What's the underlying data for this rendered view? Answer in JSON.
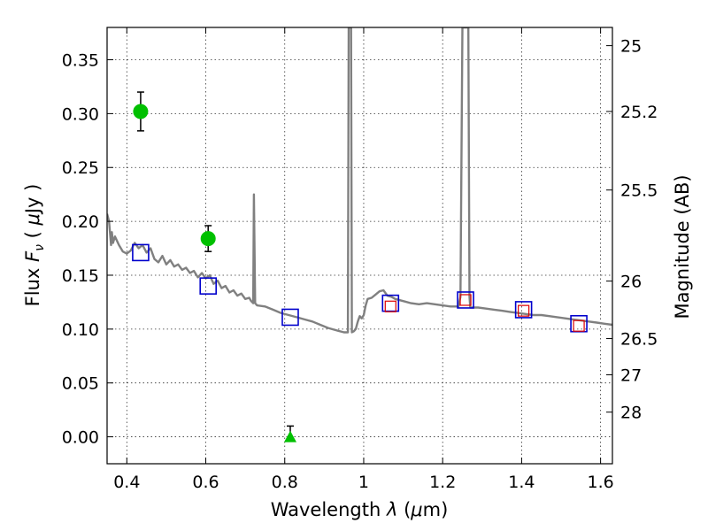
{
  "chart_data": {
    "type": "scatter",
    "xlabel": "Wavelength  λ (μm)",
    "ylabel": "Flux  F_ν  ( μJy )",
    "y2label": "Magnitude (AB)",
    "xlim": [
      0.35,
      1.63
    ],
    "ylim": [
      -0.025,
      0.38
    ],
    "grid": true,
    "xticks": [
      0.4,
      0.6,
      0.8,
      1.0,
      1.2,
      1.4,
      1.6
    ],
    "xtick_labels": [
      "0.4",
      "0.6",
      "0.8",
      "1",
      "1.2",
      "1.4",
      "1.6"
    ],
    "yticks": [
      0.0,
      0.05,
      0.1,
      0.15,
      0.2,
      0.25,
      0.3,
      0.35
    ],
    "ytick_labels": [
      "0.00",
      "0.05",
      "0.10",
      "0.15",
      "0.20",
      "0.25",
      "0.30",
      "0.35"
    ],
    "y2ticks": [
      25,
      25.2,
      25.5,
      26,
      26.5,
      27,
      28
    ],
    "y2tick_labels": [
      "25",
      "25.2",
      "25.5",
      "26",
      "26.5",
      "27",
      "28"
    ],
    "series": [
      {
        "name": "model_spectrum",
        "kind": "line",
        "color": "#808080",
        "points": [
          [
            0.35,
            0.207
          ],
          [
            0.355,
            0.2
          ],
          [
            0.36,
            0.178
          ],
          [
            0.362,
            0.19
          ],
          [
            0.365,
            0.18
          ],
          [
            0.37,
            0.186
          ],
          [
            0.38,
            0.178
          ],
          [
            0.39,
            0.172
          ],
          [
            0.4,
            0.17
          ],
          [
            0.41,
            0.173
          ],
          [
            0.42,
            0.18
          ],
          [
            0.43,
            0.175
          ],
          [
            0.44,
            0.178
          ],
          [
            0.45,
            0.171
          ],
          [
            0.46,
            0.175
          ],
          [
            0.47,
            0.165
          ],
          [
            0.48,
            0.162
          ],
          [
            0.49,
            0.168
          ],
          [
            0.5,
            0.16
          ],
          [
            0.51,
            0.164
          ],
          [
            0.52,
            0.158
          ],
          [
            0.53,
            0.16
          ],
          [
            0.54,
            0.155
          ],
          [
            0.55,
            0.157
          ],
          [
            0.56,
            0.152
          ],
          [
            0.57,
            0.154
          ],
          [
            0.58,
            0.148
          ],
          [
            0.59,
            0.152
          ],
          [
            0.6,
            0.147
          ],
          [
            0.61,
            0.15
          ],
          [
            0.62,
            0.142
          ],
          [
            0.63,
            0.145
          ],
          [
            0.64,
            0.138
          ],
          [
            0.65,
            0.14
          ],
          [
            0.66,
            0.134
          ],
          [
            0.67,
            0.136
          ],
          [
            0.68,
            0.131
          ],
          [
            0.69,
            0.133
          ],
          [
            0.7,
            0.128
          ],
          [
            0.71,
            0.129
          ],
          [
            0.715,
            0.126
          ],
          [
            0.72,
            0.124
          ],
          [
            0.722,
            0.225
          ],
          [
            0.725,
            0.124
          ],
          [
            0.73,
            0.122
          ],
          [
            0.75,
            0.121
          ],
          [
            0.77,
            0.118
          ],
          [
            0.79,
            0.115
          ],
          [
            0.81,
            0.113
          ],
          [
            0.83,
            0.111
          ],
          [
            0.85,
            0.109
          ],
          [
            0.87,
            0.107
          ],
          [
            0.89,
            0.104
          ],
          [
            0.91,
            0.101
          ],
          [
            0.93,
            0.099
          ],
          [
            0.95,
            0.097
          ],
          [
            0.96,
            0.097
          ],
          [
            0.962,
            0.38
          ],
          [
            0.968,
            0.38
          ],
          [
            0.97,
            0.097
          ],
          [
            0.975,
            0.098
          ],
          [
            0.98,
            0.1
          ],
          [
            0.985,
            0.107
          ],
          [
            0.99,
            0.112
          ],
          [
            0.995,
            0.11
          ],
          [
            1.0,
            0.113
          ],
          [
            1.005,
            0.122
          ],
          [
            1.01,
            0.128
          ],
          [
            1.02,
            0.129
          ],
          [
            1.03,
            0.132
          ],
          [
            1.04,
            0.135
          ],
          [
            1.05,
            0.136
          ],
          [
            1.06,
            0.131
          ],
          [
            1.07,
            0.13
          ],
          [
            1.08,
            0.128
          ],
          [
            1.1,
            0.126
          ],
          [
            1.12,
            0.124
          ],
          [
            1.14,
            0.123
          ],
          [
            1.16,
            0.124
          ],
          [
            1.18,
            0.123
          ],
          [
            1.2,
            0.122
          ],
          [
            1.22,
            0.121
          ],
          [
            1.24,
            0.121
          ],
          [
            1.245,
            0.13
          ],
          [
            1.25,
            0.38
          ],
          [
            1.265,
            0.38
          ],
          [
            1.268,
            0.13
          ],
          [
            1.27,
            0.12
          ],
          [
            1.29,
            0.12
          ],
          [
            1.31,
            0.119
          ],
          [
            1.33,
            0.118
          ],
          [
            1.35,
            0.117
          ],
          [
            1.37,
            0.116
          ],
          [
            1.39,
            0.115
          ],
          [
            1.41,
            0.114
          ],
          [
            1.43,
            0.113
          ],
          [
            1.45,
            0.113
          ],
          [
            1.47,
            0.112
          ],
          [
            1.49,
            0.111
          ],
          [
            1.51,
            0.11
          ],
          [
            1.53,
            0.109
          ],
          [
            1.55,
            0.108
          ],
          [
            1.57,
            0.107
          ],
          [
            1.59,
            0.106
          ],
          [
            1.61,
            0.105
          ],
          [
            1.63,
            0.104
          ]
        ]
      },
      {
        "name": "observed_green",
        "kind": "circle_errorbar",
        "color": "#00c000",
        "points": [
          {
            "x": 0.435,
            "y": 0.302,
            "yerr": 0.018
          },
          {
            "x": 0.606,
            "y": 0.184,
            "yerr": 0.012
          }
        ]
      },
      {
        "name": "upper_limit_green",
        "kind": "triangle_errorbar",
        "color": "#00c000",
        "points": [
          {
            "x": 0.814,
            "y": 0.0,
            "yerr": 0.01
          }
        ]
      },
      {
        "name": "model_photometry_blue",
        "kind": "square_open",
        "color": "#0000cc",
        "points": [
          {
            "x": 0.435,
            "y": 0.171
          },
          {
            "x": 0.606,
            "y": 0.14
          },
          {
            "x": 0.814,
            "y": 0.111
          },
          {
            "x": 1.068,
            "y": 0.124
          },
          {
            "x": 1.258,
            "y": 0.127
          },
          {
            "x": 1.405,
            "y": 0.118
          },
          {
            "x": 1.545,
            "y": 0.105
          }
        ]
      },
      {
        "name": "observed_red",
        "kind": "square_open_small",
        "color": "#dd0000",
        "points": [
          {
            "x": 1.068,
            "y": 0.121
          },
          {
            "x": 1.258,
            "y": 0.127
          },
          {
            "x": 1.405,
            "y": 0.117
          },
          {
            "x": 1.545,
            "y": 0.103
          }
        ]
      }
    ]
  }
}
